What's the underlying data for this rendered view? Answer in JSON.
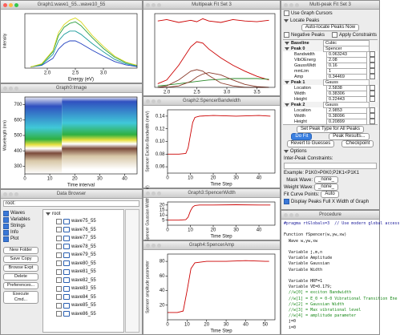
{
  "windows": {
    "graph1": "Graph1:wave1_55...wave10_55",
    "image": "Graph0:Image",
    "browser": "Data Browser",
    "fit_graph": "Multipeak Fit Set 3",
    "graph2": "Graph2:SpencerBandwidth",
    "graph3": "Graph3:SpencerWidth",
    "graph4": "Graph4:SpencerAmp",
    "fit_panel": "Multi-peak Fit Set 3",
    "procedure": "Procedure"
  },
  "chart_data": [
    {
      "type": "line",
      "xlabel": "Energy (eV)",
      "ylabel": "Intensity",
      "xlim": [
        1.6,
        3.6
      ],
      "xticks": [
        {
          "value": 2,
          "label": "2.0"
        },
        2.5,
        {
          "value": 3,
          "label": "3.0"
        }
      ],
      "ylim": [
        0,
        1
      ],
      "x": [
        1.7,
        1.9,
        2.1,
        2.2,
        2.3,
        2.4,
        2.5,
        2.6,
        2.8,
        3.0,
        3.2,
        3.4,
        3.6
      ],
      "series": [
        {
          "color": "#1f3fbf",
          "values": [
            0.02,
            0.05,
            0.18,
            0.35,
            0.45,
            0.5,
            0.5,
            0.45,
            0.33,
            0.22,
            0.12,
            0.06,
            0.03
          ]
        },
        {
          "color": "#1a9a9a",
          "values": [
            0.02,
            0.06,
            0.25,
            0.5,
            0.62,
            0.68,
            0.68,
            0.62,
            0.45,
            0.3,
            0.16,
            0.08,
            0.04
          ]
        },
        {
          "color": "#2e9e3e",
          "values": [
            0.02,
            0.07,
            0.3,
            0.6,
            0.75,
            0.82,
            0.85,
            0.78,
            0.56,
            0.36,
            0.2,
            0.1,
            0.05
          ]
        },
        {
          "color": "#d8d820",
          "values": [
            0.02,
            0.08,
            0.32,
            0.65,
            0.8,
            0.88,
            0.92,
            0.85,
            0.6,
            0.4,
            0.22,
            0.11,
            0.05
          ]
        }
      ]
    },
    {
      "type": "image",
      "xlabel": "Time interval",
      "ylabel": "Wavelength (nm)",
      "xlim": [
        0,
        45
      ],
      "xticks": [
        0,
        10,
        20,
        30,
        40
      ],
      "ylim": [
        250,
        750
      ],
      "yticks": [
        300,
        400,
        500,
        600,
        700
      ]
    },
    {
      "type": "line",
      "xlim": [
        1.8,
        3.8
      ],
      "xticks": [
        {
          "value": 2,
          "label": "2.0"
        },
        2.5,
        {
          "value": 3,
          "label": "3.0"
        },
        3.5
      ],
      "ylim": [
        0,
        1
      ],
      "x": [
        1.85,
        2.0,
        2.2,
        2.4,
        2.5,
        2.6,
        2.7,
        2.9,
        3.1,
        3.3,
        3.5,
        3.7
      ],
      "series": [
        {
          "color": "#cc0000",
          "values": [
            0.9,
            0.92,
            0.88,
            0.91,
            0.89,
            0.93,
            0.9,
            0.88,
            0.92,
            0.9,
            0.89,
            0.91
          ]
        },
        {
          "color": "#cc0000",
          "values": [
            0.05,
            0.1,
            0.3,
            0.55,
            0.62,
            0.6,
            0.52,
            0.4,
            0.3,
            0.22,
            0.15,
            0.1
          ]
        },
        {
          "color": "#2a8a2a",
          "values": [
            0.02,
            0.03,
            0.05,
            0.07,
            0.08,
            0.09,
            0.1,
            0.11,
            0.12,
            0.12,
            0.12,
            0.11
          ]
        },
        {
          "color": "#8a3a2a",
          "values": [
            0,
            0.02,
            0.1,
            0.22,
            0.24,
            0.22,
            0.16,
            0.06,
            0.02,
            0,
            0,
            0
          ]
        },
        {
          "color": "#8a3a2a",
          "values": [
            0,
            0,
            0.02,
            0.08,
            0.14,
            0.18,
            0.2,
            0.17,
            0.1,
            0.04,
            0.01,
            0
          ]
        }
      ]
    },
    {
      "type": "line",
      "xlabel": "Time Step",
      "ylabel": "Spencer Exciton Bandwidth (meV)",
      "xlim": [
        0,
        47
      ],
      "xticks": [
        0,
        10,
        20,
        30,
        40
      ],
      "ylim": [
        0.05,
        0.15
      ],
      "yticks": [
        0.06,
        0.08,
        {
          "value": 0.1,
          "label": "0.10"
        },
        0.12,
        0.14
      ],
      "x": [
        0,
        5,
        8,
        9,
        10,
        11,
        12,
        14,
        20,
        30,
        40,
        45
      ],
      "series": [
        {
          "color": "#cc0000",
          "values": [
            0.08,
            0.08,
            0.081,
            0.09,
            0.11,
            0.13,
            0.138,
            0.14,
            0.141,
            0.14,
            0.141,
            0.14
          ]
        }
      ]
    },
    {
      "type": "line",
      "xlabel": "Time Step",
      "ylabel": "Spencer Gaussian Width (meV)",
      "xlim": [
        0,
        47
      ],
      "xticks": [
        0,
        10,
        20,
        30,
        40
      ],
      "ylim": [
        0,
        23
      ],
      "yticks": [
        5,
        10,
        15,
        20
      ],
      "x": [
        0,
        5,
        8,
        9,
        10,
        11,
        12,
        14,
        20,
        30,
        40,
        45
      ],
      "series": [
        {
          "color": "#cc0000",
          "values": [
            5,
            5,
            5.5,
            8,
            14,
            18,
            19.5,
            20,
            20,
            20.2,
            20,
            20
          ]
        }
      ]
    },
    {
      "type": "line",
      "xlabel": "Time Step",
      "ylabel": "Spencer amplitude parameter",
      "xlim": [
        0,
        55
      ],
      "xticks": [
        0,
        10,
        20,
        30,
        40,
        50
      ],
      "ylim": [
        0,
        90
      ],
      "yticks": [
        20,
        40,
        60,
        80
      ],
      "x": [
        0,
        5,
        8,
        10,
        12,
        14,
        20,
        30,
        40,
        50,
        52
      ],
      "series": [
        {
          "color": "#cc0000",
          "values": [
            10,
            10,
            12,
            40,
            70,
            78,
            80,
            80,
            81,
            80,
            80
          ]
        }
      ]
    }
  ],
  "data_browser": {
    "path": "root:",
    "options": [
      "Waves",
      "Variables",
      "Strings",
      "Info",
      "Plot"
    ],
    "buttons": [
      "New Folder",
      "Save Copy",
      "Browse Expt",
      "Delete",
      "Preferences...",
      "Execute Cmd..."
    ],
    "folder": "root",
    "items": [
      "wave75_55",
      "wave76_55",
      "wave77_55",
      "wave78_55",
      "wave79_55",
      "wave80_55",
      "wave81_55",
      "wave82_55",
      "wave83_55",
      "wave84_55",
      "wave85_55",
      "wave86_55"
    ]
  },
  "fit_panel": {
    "use_cursors": "Use Graph Cursors",
    "locate": "Locate Peaks",
    "auto": "Auto-locate Peaks Now",
    "negative": "Negative Peaks",
    "apply": "Apply Constraints",
    "peaks": [
      {
        "label": "Baseline",
        "type": "Cubic",
        "params": []
      },
      {
        "label": "Peak 0",
        "type": "Spencer",
        "params": [
          {
            "name": "Bandwidth",
            "value": "0.063243"
          },
          {
            "name": "VibOEnerg",
            "value": "2.08"
          },
          {
            "name": "GaussWidt",
            "value": "0.16"
          },
          {
            "name": "mmLim",
            "value": "1"
          },
          {
            "name": "Amp",
            "value": "0.34469"
          }
        ]
      },
      {
        "label": "Peak 1",
        "type": "Gauss",
        "params": [
          {
            "name": "Location",
            "value": "2.5838"
          },
          {
            "name": "Width",
            "value": "0.38306"
          },
          {
            "name": "Height",
            "value": "0.22443"
          }
        ]
      },
      {
        "label": "Peak 2",
        "type": "Gauss",
        "params": [
          {
            "name": "Location",
            "value": "2.9853"
          },
          {
            "name": "Width",
            "value": "0.38096"
          },
          {
            "name": "Height",
            "value": "0.20899"
          }
        ]
      }
    ],
    "set_type": "Set Peak Type for All Peaks",
    "do_fit": "Do Fit",
    "results": "Peak Results...",
    "revert": "Revert to Guesses",
    "checkpoint": "Checkpoint",
    "options": "Options",
    "inter": "Inter-Peak Constraints:",
    "example": "Example: P1K0>P0K0;P2K1<P1K1",
    "mask_label": "Mask Wave:",
    "mask": "_none_",
    "weight_label": "Weight Wave:",
    "weight": "_none_",
    "fit_points": "Fit Curve Points:",
    "fit_points_value": "Auto",
    "display": "Display Peaks Full X Width of Graph"
  },
  "procedure": {
    "lines": [
      "#pragma rtGlobals=3  // Use modern global access",
      "",
      "Function fSpencer(w,yw,xw)",
      "  Wave w,yw,xw",
      "",
      "  Variable j,m,n",
      "  Variable Amplitude",
      "  Variable Gaussian",
      "  Variable Width",
      "",
      "  Variable HRF=1",
      "  Variable VE=0.179;",
      "  //w[0] = exciton Bandwidth",
      "  //w[1] = E_0 = 0-0 Vibrational Transition Ene",
      "  //w[2] = Gaussian Width",
      "  //w[3] = Max vibrational level",
      "  //w[4] = amplitude parameter",
      "  j=0",
      "  i=0"
    ]
  }
}
